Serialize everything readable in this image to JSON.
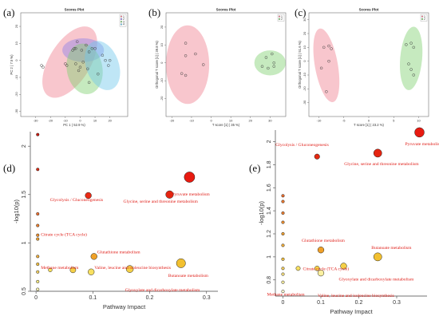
{
  "panel_letters": [
    "(a)",
    "(b)",
    "(c)",
    "(d)",
    "(e)"
  ],
  "chart_data": [
    {
      "id": "a",
      "type": "scatter",
      "title": "Scores Plot",
      "xlabel": "PC 1 ( 52.9 %)",
      "ylabel": "PC 2 ( 7.5 %)",
      "xlim": [
        -40,
        32
      ],
      "ylim": [
        -33,
        28
      ],
      "xticks": [
        -30,
        -20,
        -10,
        0,
        10,
        20
      ],
      "yticks": [
        -30,
        -20,
        -10,
        0,
        10,
        20
      ],
      "legend": [
        "1",
        "2",
        "3",
        "4"
      ],
      "legend_position": "top-right",
      "groups": [
        {
          "name": "1",
          "color": "#f08090",
          "ellipse": {
            "cx": -7,
            "cy": -1,
            "rx": 27,
            "ry": 12,
            "angle": 58
          },
          "points": [
            [
              -26,
              -3
            ],
            [
              -25,
              -4
            ],
            [
              -10,
              -2
            ],
            [
              -9,
              -3
            ],
            [
              -4,
              7
            ],
            [
              -2,
              11
            ],
            [
              -3,
              -2
            ]
          ]
        },
        {
          "name": "2",
          "color": "#9080e8",
          "ellipse": {
            "cx": 2,
            "cy": 6,
            "rx": 14,
            "ry": 7,
            "angle": 0
          },
          "points": [
            [
              -3,
              7
            ],
            [
              1,
              6
            ],
            [
              4,
              9
            ],
            [
              6,
              5
            ],
            [
              8,
              7
            ],
            [
              -5,
              6
            ]
          ]
        },
        {
          "name": "3",
          "color": "#80d070",
          "ellipse": {
            "cx": 3,
            "cy": -5,
            "rx": 12,
            "ry": 15,
            "angle": 10
          },
          "points": [
            [
              0,
              -4
            ],
            [
              5,
              -5
            ],
            [
              6,
              -13
            ],
            [
              2,
              -1
            ],
            [
              -1,
              -6
            ]
          ]
        },
        {
          "name": "4",
          "color": "#70c8ec",
          "ellipse": {
            "cx": 15,
            "cy": -3,
            "rx": 11,
            "ry": 15,
            "angle": 20
          },
          "points": [
            [
              10,
              7
            ],
            [
              15,
              3
            ],
            [
              17,
              0
            ],
            [
              12,
              -8
            ],
            [
              19,
              -3
            ],
            [
              20,
              0
            ]
          ]
        }
      ]
    },
    {
      "id": "b",
      "type": "scatter",
      "title": "Scores Plot",
      "xlabel": "T score [1] ( 35 %)",
      "ylabel": "Orthogonal T score [1] ( 39.8 %)",
      "xlim": [
        -23,
        38
      ],
      "ylim": [
        -30,
        28
      ],
      "xticks": [
        -20,
        -10,
        0,
        10,
        20,
        30
      ],
      "yticks": [
        -20,
        -10,
        0,
        10,
        20
      ],
      "legend": [
        "1",
        "2"
      ],
      "legend_position": "top-right",
      "groups": [
        {
          "name": "1",
          "color": "#f08090",
          "ellipse": {
            "cx": -12,
            "cy": -1,
            "rx": 11,
            "ry": 22,
            "angle": 0
          },
          "points": [
            [
              -13,
              11
            ],
            [
              -13,
              4
            ],
            [
              -8,
              5
            ],
            [
              -4,
              -1
            ],
            [
              -13,
              -7
            ],
            [
              -15,
              -6
            ]
          ]
        },
        {
          "name": "2",
          "color": "#80d070",
          "ellipse": {
            "cx": 30,
            "cy": 0,
            "rx": 8,
            "ry": 7,
            "angle": 0
          },
          "points": [
            [
              28,
              3
            ],
            [
              31,
              5
            ],
            [
              32,
              0
            ],
            [
              29,
              -3
            ],
            [
              26,
              -2
            ],
            [
              32,
              -2
            ]
          ]
        }
      ]
    },
    {
      "id": "c",
      "type": "scatter",
      "title": "Scores Plot",
      "xlabel": "T score [1] ( 23.2 %)",
      "ylabel": "Orthogonal T score [1] ( 51.6 %)",
      "xlim": [
        -12,
        12
      ],
      "ylim": [
        -40,
        35
      ],
      "xticks": [
        -10,
        -5,
        0,
        5,
        10
      ],
      "yticks": [
        -30,
        -20,
        -10,
        0,
        10,
        20,
        30
      ],
      "legend": [
        "1",
        "2"
      ],
      "legend_position": "top-right",
      "groups": [
        {
          "name": "1",
          "color": "#f08090",
          "ellipse": {
            "cx": -8.5,
            "cy": -3,
            "rx": 2.3,
            "ry": 27,
            "angle": 10
          },
          "points": [
            [
              -9,
              10
            ],
            [
              -8,
              11
            ],
            [
              -7.5,
              9
            ],
            [
              -8,
              0
            ],
            [
              -9.5,
              -5
            ],
            [
              -8.5,
              -22
            ]
          ]
        },
        {
          "name": "2",
          "color": "#80d070",
          "ellipse": {
            "cx": 8.5,
            "cy": 2,
            "rx": 2.2,
            "ry": 23,
            "angle": -5
          },
          "points": [
            [
              7.5,
              12
            ],
            [
              8.5,
              13
            ],
            [
              9,
              10
            ],
            [
              8,
              -2
            ],
            [
              8.5,
              -6
            ],
            [
              9,
              -10
            ]
          ]
        }
      ]
    },
    {
      "id": "d",
      "type": "scatter",
      "xlabel": "Pathway Impact",
      "ylabel": "-log10(p)",
      "xlim": [
        -0.01,
        0.32
      ],
      "ylim": [
        0.5,
        2.15
      ],
      "xticks": [
        0.0,
        0.1,
        0.2,
        0.3
      ],
      "yticks": [
        0.5,
        1.0,
        1.5,
        2.0
      ],
      "points": [
        {
          "x": 0.27,
          "y": 1.68,
          "size": 2.2,
          "color": "#e81a10",
          "label": "Pyruvate metabolism"
        },
        {
          "x": 0.235,
          "y": 1.5,
          "size": 1.6,
          "color": "#e52410",
          "label": "Glycine, serine and threonine metabolism"
        },
        {
          "x": 0.092,
          "y": 1.49,
          "size": 1.3,
          "color": "#ea2a14",
          "label": "Glycolysis / Gluconeogenesis"
        },
        {
          "x": 0.003,
          "y": 2.12,
          "size": 0.6,
          "color": "#cc1a10",
          "label": ""
        },
        {
          "x": 0.003,
          "y": 1.76,
          "size": 0.6,
          "color": "#dd2a14",
          "label": ""
        },
        {
          "x": 0.003,
          "y": 1.3,
          "size": 0.6,
          "color": "#ee7030",
          "label": ""
        },
        {
          "x": 0.003,
          "y": 1.18,
          "size": 0.6,
          "color": "#ee8030",
          "label": ""
        },
        {
          "x": 0.003,
          "y": 1.08,
          "size": 0.6,
          "color": "#f09030",
          "label": ""
        },
        {
          "x": 0.003,
          "y": 1.04,
          "size": 0.6,
          "color": "#f0a030",
          "label": "Citrate cycle (TCA cycle)"
        },
        {
          "x": 0.003,
          "y": 0.86,
          "size": 0.6,
          "color": "#f0b040",
          "label": ""
        },
        {
          "x": 0.003,
          "y": 0.78,
          "size": 0.6,
          "color": "#f2c040",
          "label": ""
        },
        {
          "x": 0.003,
          "y": 0.7,
          "size": 0.6,
          "color": "#f4d060",
          "label": "Methane metabolism"
        },
        {
          "x": 0.003,
          "y": 0.6,
          "size": 0.6,
          "color": "#f8e880",
          "label": ""
        },
        {
          "x": 0.003,
          "y": 0.52,
          "size": 0.6,
          "color": "#fbf4b0",
          "label": ""
        },
        {
          "x": 0.102,
          "y": 0.86,
          "size": 1.3,
          "color": "#f0a028",
          "label": "Glutathione metabolism"
        },
        {
          "x": 0.025,
          "y": 0.72,
          "size": 0.8,
          "color": "#f8e060",
          "label": ""
        },
        {
          "x": 0.065,
          "y": 0.72,
          "size": 1.2,
          "color": "#f5d048",
          "label": ""
        },
        {
          "x": 0.097,
          "y": 0.7,
          "size": 1.3,
          "color": "#f8e060",
          "label": "Valine, leucine and isoleucine biosynthesis"
        },
        {
          "x": 0.165,
          "y": 0.73,
          "size": 1.5,
          "color": "#f4d048",
          "label": "Glyoxylate and dicarboxylate metabolism"
        },
        {
          "x": 0.255,
          "y": 0.79,
          "size": 1.9,
          "color": "#f2c030",
          "label": "Butanoate metabolism"
        }
      ]
    },
    {
      "id": "e",
      "type": "scatter",
      "xlabel": "Pathway Impact",
      "ylabel": "-log10(p)",
      "xlim": [
        -0.02,
        0.38
      ],
      "ylim": [
        0.66,
        2.1
      ],
      "xticks": [
        0.0,
        0.1,
        0.2,
        0.3
      ],
      "yticks": [
        0.8,
        1.0,
        1.2,
        1.4,
        1.6,
        1.8,
        2.0
      ],
      "points": [
        {
          "x": 0.36,
          "y": 2.08,
          "size": 2.0,
          "color": "#e81a10",
          "label": "Pyruvate metabolism"
        },
        {
          "x": 0.25,
          "y": 1.9,
          "size": 1.7,
          "color": "#e52410",
          "label": "Glycine, serine and threonine metabolism"
        },
        {
          "x": 0.09,
          "y": 1.87,
          "size": 1.1,
          "color": "#e42810",
          "label": "Glycolysis / Gluconeogenesis"
        },
        {
          "x": 0.0,
          "y": 1.53,
          "size": 0.6,
          "color": "#ee7030",
          "label": ""
        },
        {
          "x": 0.0,
          "y": 1.48,
          "size": 0.6,
          "color": "#ee7a30",
          "label": ""
        },
        {
          "x": 0.0,
          "y": 1.38,
          "size": 0.6,
          "color": "#ef8030",
          "label": ""
        },
        {
          "x": 0.0,
          "y": 1.3,
          "size": 0.6,
          "color": "#f09030",
          "label": ""
        },
        {
          "x": 0.0,
          "y": 1.2,
          "size": 0.6,
          "color": "#f0a030",
          "label": ""
        },
        {
          "x": 0.0,
          "y": 1.1,
          "size": 0.6,
          "color": "#f2b040",
          "label": ""
        },
        {
          "x": 0.0,
          "y": 0.98,
          "size": 0.6,
          "color": "#f4c040",
          "label": ""
        },
        {
          "x": 0.0,
          "y": 0.9,
          "size": 0.6,
          "color": "#f6d060",
          "label": ""
        },
        {
          "x": 0.0,
          "y": 0.85,
          "size": 0.6,
          "color": "#f8e080",
          "label": "Methane metabolism"
        },
        {
          "x": 0.0,
          "y": 0.78,
          "size": 0.6,
          "color": "#fbf0a0",
          "label": ""
        },
        {
          "x": 0.0,
          "y": 0.7,
          "size": 0.6,
          "color": "#fdf8d0",
          "label": ""
        },
        {
          "x": 0.1,
          "y": 1.06,
          "size": 1.3,
          "color": "#f0a028",
          "label": "Glutathione metabolism"
        },
        {
          "x": 0.04,
          "y": 0.9,
          "size": 0.9,
          "color": "#f8e060",
          "label": "Citrate cycle (TCA cycle)"
        },
        {
          "x": 0.09,
          "y": 0.9,
          "size": 1.0,
          "color": "#f5d048",
          "label": ""
        },
        {
          "x": 0.1,
          "y": 0.86,
          "size": 1.3,
          "color": "#fbf0a0",
          "label": "Valine, leucine and isoleucine biosynthesis"
        },
        {
          "x": 0.16,
          "y": 0.92,
          "size": 1.3,
          "color": "#f4d048",
          "label": "Glyoxylate and dicarboxylate metabolism"
        },
        {
          "x": 0.25,
          "y": 1.0,
          "size": 1.7,
          "color": "#f2c030",
          "label": "Butanoate metabolism"
        }
      ]
    }
  ]
}
